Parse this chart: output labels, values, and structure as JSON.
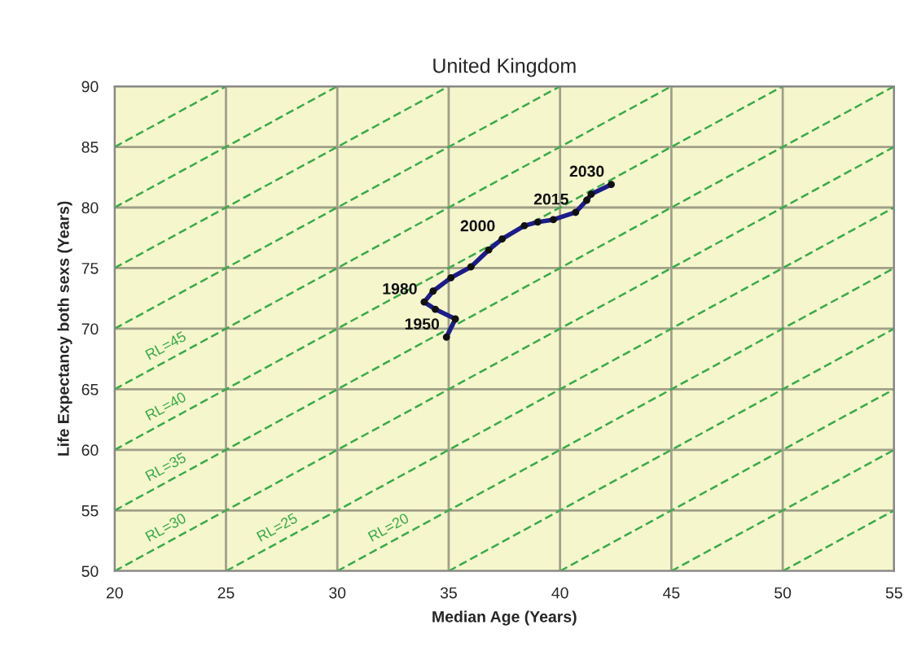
{
  "chart_data": {
    "type": "line",
    "title": "United Kingdom",
    "xlabel": "Median Age (Years)",
    "ylabel": "Life Expectancy both sexs (Years)",
    "xlim": [
      20,
      55
    ],
    "ylim": [
      50,
      90
    ],
    "xticks": [
      20,
      25,
      30,
      35,
      40,
      45,
      50,
      55
    ],
    "yticks": [
      50,
      55,
      60,
      65,
      70,
      75,
      80,
      85,
      90
    ],
    "grid": true,
    "series": [
      {
        "color": "#1c1c8a",
        "marker": "circle",
        "line_style": "solid",
        "x": [
          34.9,
          35.3,
          34.4,
          33.9,
          34.3,
          35.1,
          36.0,
          36.8,
          37.4,
          38.4,
          39.0,
          39.7,
          40.7,
          41.2,
          41.4,
          42.3
        ],
        "values": [
          69.3,
          70.8,
          71.6,
          72.2,
          73.1,
          74.2,
          75.1,
          76.5,
          77.4,
          78.5,
          78.8,
          79.0,
          79.6,
          80.6,
          81.1,
          81.9
        ]
      },
      {
        "color": "#3aaa4a",
        "line_style": "dashed",
        "name": "RL=45",
        "x": [
          20,
          45
        ],
        "values": [
          65,
          90
        ]
      },
      {
        "color": "#3aaa4a",
        "line_style": "dashed",
        "name": "RL=40",
        "x": [
          20,
          50
        ],
        "values": [
          60,
          90
        ]
      },
      {
        "color": "#3aaa4a",
        "line_style": "dashed",
        "name": "RL=35",
        "x": [
          20,
          55
        ],
        "values": [
          55,
          90
        ]
      },
      {
        "color": "#3aaa4a",
        "line_style": "dashed",
        "name": "RL=30",
        "x": [
          20,
          55
        ],
        "values": [
          50,
          85
        ]
      },
      {
        "color": "#3aaa4a",
        "line_style": "dashed",
        "name": "RL=25",
        "x": [
          25,
          55
        ],
        "values": [
          50,
          80
        ]
      },
      {
        "color": "#3aaa4a",
        "line_style": "dashed",
        "name": "RL=20",
        "x": [
          30,
          55
        ],
        "values": [
          50,
          75
        ]
      },
      {
        "color": "#3aaa4a",
        "line_style": "dashed",
        "x": [
          20,
          25
        ],
        "values": [
          85,
          90
        ]
      },
      {
        "color": "#3aaa4a",
        "line_style": "dashed",
        "x": [
          20,
          30
        ],
        "values": [
          80,
          90
        ]
      },
      {
        "color": "#3aaa4a",
        "line_style": "dashed",
        "x": [
          20,
          35
        ],
        "values": [
          75,
          90
        ]
      },
      {
        "color": "#3aaa4a",
        "line_style": "dashed",
        "x": [
          20,
          40
        ],
        "values": [
          70,
          90
        ]
      },
      {
        "color": "#3aaa4a",
        "line_style": "dashed",
        "x": [
          35,
          55
        ],
        "values": [
          50,
          70
        ]
      },
      {
        "color": "#3aaa4a",
        "line_style": "dashed",
        "x": [
          40,
          55
        ],
        "values": [
          50,
          65
        ]
      },
      {
        "color": "#3aaa4a",
        "line_style": "dashed",
        "x": [
          45,
          55
        ],
        "values": [
          50,
          60
        ]
      },
      {
        "color": "#3aaa4a",
        "line_style": "dashed",
        "x": [
          50,
          55
        ],
        "values": [
          50,
          55
        ]
      }
    ],
    "annotations": [
      {
        "text": "1950",
        "x": 34.9,
        "y": 69.3
      },
      {
        "text": "1980",
        "x": 33.9,
        "y": 72.2
      },
      {
        "text": "2000",
        "x": 37.4,
        "y": 77.4
      },
      {
        "text": "2015",
        "x": 40.7,
        "y": 79.6
      },
      {
        "text": "2030",
        "x": 42.3,
        "y": 81.9
      }
    ]
  }
}
